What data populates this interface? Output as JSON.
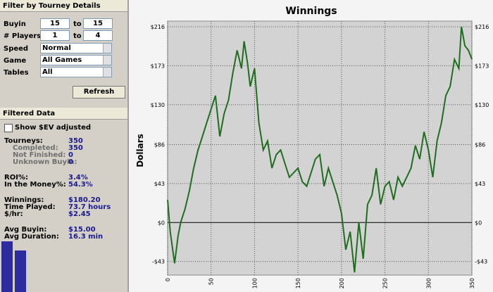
{
  "filter": {
    "title": "Filter by Tourney Details",
    "ranges": [
      {
        "label": "Buyin",
        "from": "15",
        "to_label": "to",
        "to": "15"
      },
      {
        "label": "# Players",
        "from": "1",
        "to_label": "to",
        "to": "4"
      }
    ],
    "dropdowns": [
      {
        "label": "Speed",
        "value": "Normal"
      },
      {
        "label": "Game",
        "value": "All Games"
      },
      {
        "label": "Tables",
        "value": "All"
      }
    ],
    "button": "Refresh"
  },
  "filtered": {
    "title": "Filtered Data",
    "checkbox": "Show $EV adjusted",
    "groups": [
      [
        {
          "label": "Tourneys:",
          "value": "350",
          "indent": false
        },
        {
          "label": "Completed:",
          "value": "350",
          "indent": true
        },
        {
          "label": "Not Finished:",
          "value": "0",
          "indent": true
        },
        {
          "label": "Unknown Buyin:",
          "value": "0",
          "indent": true
        }
      ],
      [
        {
          "label": "ROI%:",
          "value": "3.4%",
          "indent": false
        },
        {
          "label": "In the Money%:",
          "value": "54.3%",
          "indent": false
        }
      ],
      [
        {
          "label": "Winnings:",
          "value": "$180.20",
          "indent": false
        },
        {
          "label": "Time Played:",
          "value": "73.7 hours",
          "indent": false
        },
        {
          "label": "$/hr:",
          "value": "$2.45",
          "indent": false
        }
      ],
      [
        {
          "label": "Avg Buyin:",
          "value": "$15.00",
          "indent": false
        },
        {
          "label": "Avg Duration:",
          "value": "16.3 min",
          "indent": false
        }
      ]
    ]
  },
  "chart_data": {
    "type": "line",
    "title": "Winnings",
    "y_label": "Dollars",
    "x": [
      0,
      3,
      8,
      12,
      15,
      20,
      25,
      30,
      35,
      40,
      45,
      50,
      55,
      60,
      65,
      70,
      75,
      80,
      85,
      88,
      92,
      95,
      100,
      105,
      110,
      115,
      120,
      125,
      130,
      135,
      140,
      145,
      150,
      155,
      160,
      165,
      170,
      175,
      180,
      185,
      190,
      195,
      200,
      205,
      210,
      215,
      220,
      225,
      230,
      235,
      240,
      245,
      250,
      255,
      260,
      265,
      270,
      275,
      280,
      285,
      290,
      295,
      300,
      305,
      310,
      315,
      320,
      325,
      330,
      335,
      338,
      342,
      346,
      350
    ],
    "series": [
      {
        "name": "Winnings",
        "color": "#1f6e1f",
        "values": [
          25,
          -10,
          -45,
          -15,
          0,
          15,
          35,
          60,
          80,
          95,
          110,
          125,
          140,
          95,
          120,
          135,
          165,
          190,
          170,
          200,
          175,
          150,
          170,
          110,
          80,
          90,
          60,
          75,
          80,
          65,
          50,
          55,
          60,
          45,
          40,
          55,
          70,
          75,
          40,
          60,
          45,
          30,
          10,
          -30,
          -10,
          -55,
          0,
          -40,
          20,
          30,
          60,
          20,
          40,
          45,
          25,
          50,
          40,
          50,
          60,
          85,
          70,
          100,
          80,
          50,
          90,
          110,
          140,
          150,
          180,
          170,
          216,
          195,
          190,
          180.2
        ]
      }
    ],
    "xlim": [
      0,
      350
    ],
    "xticks": [
      0,
      50,
      100,
      150,
      200,
      250,
      300,
      350
    ],
    "ylim": [
      -58,
      216
    ],
    "yticks": [
      {
        "value": -43,
        "label": "-$43"
      },
      {
        "value": 0,
        "label": "$0"
      },
      {
        "value": 43,
        "label": "$43"
      },
      {
        "value": 86,
        "label": "$86"
      },
      {
        "value": 130,
        "label": "$130"
      },
      {
        "value": 173,
        "label": "$173"
      },
      {
        "value": 216,
        "label": "$216"
      }
    ],
    "grid": true
  }
}
